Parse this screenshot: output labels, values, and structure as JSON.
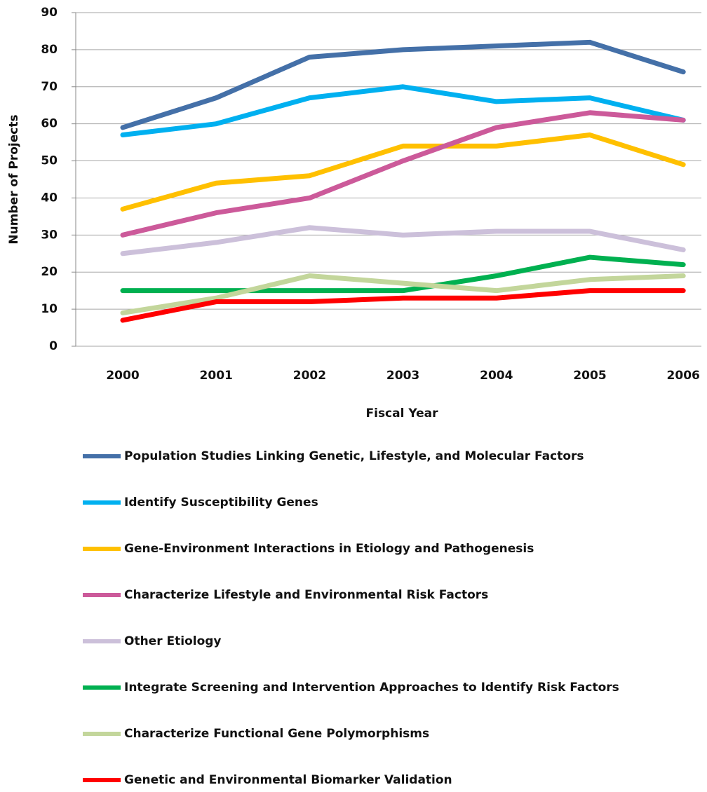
{
  "chart_data": {
    "type": "line",
    "x_label": "Fiscal Year",
    "y_label": "Number of Projects",
    "categories": [
      "2000",
      "2001",
      "2002",
      "2003",
      "2004",
      "2005",
      "2006"
    ],
    "ylim": [
      0,
      90
    ],
    "yticks": [
      0,
      10,
      20,
      30,
      40,
      50,
      60,
      70,
      80,
      90
    ],
    "grid": true,
    "legend": "bottom",
    "series": [
      {
        "name": "Population Studies Linking Genetic, Lifestyle, and Molecular Factors",
        "color": "#4470a8",
        "values": [
          59,
          67,
          78,
          80,
          81,
          82,
          74
        ]
      },
      {
        "name": "Identify Susceptibility Genes",
        "color": "#00b0f0",
        "values": [
          57,
          60,
          67,
          70,
          66,
          67,
          61
        ]
      },
      {
        "name": "Gene-Environment Interactions in Etiology and Pathogenesis",
        "color": "#ffc000",
        "values": [
          37,
          44,
          46,
          54,
          54,
          57,
          49
        ]
      },
      {
        "name": "Characterize Lifestyle and Environmental Risk Factors",
        "color": "#cc5a9a",
        "values": [
          30,
          36,
          40,
          50,
          59,
          63,
          61
        ]
      },
      {
        "name": "Other Etiology",
        "color": "#ccc0da",
        "values": [
          25,
          28,
          32,
          30,
          31,
          31,
          26
        ]
      },
      {
        "name": "Integrate Screening and Intervention Approaches to Identify Risk Factors",
        "color": "#00b050",
        "values": [
          15,
          15,
          15,
          15,
          19,
          24,
          22
        ]
      },
      {
        "name": "Characterize Functional Gene Polymorphisms",
        "color": "#c3d69b",
        "values": [
          9,
          13,
          19,
          17,
          15,
          18,
          19
        ]
      },
      {
        "name": "Genetic and Environmental Biomarker Validation",
        "color": "#ff0000",
        "values": [
          7,
          12,
          12,
          13,
          13,
          15,
          15
        ]
      }
    ]
  }
}
